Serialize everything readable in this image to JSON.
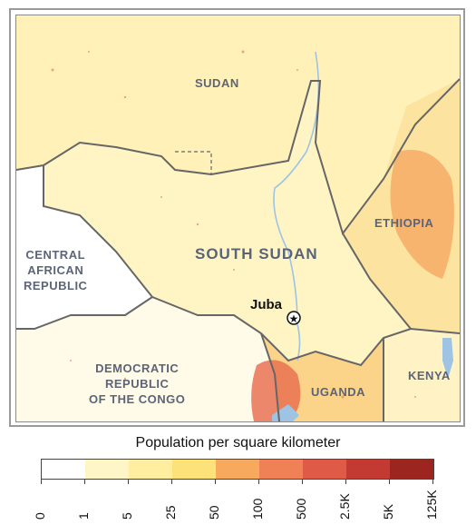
{
  "map": {
    "countries": {
      "sudan": "SUDAN",
      "south_sudan": "SOUTH SUDAN",
      "ethiopia": "ETHIOPIA",
      "car": [
        "CENTRAL",
        "AFRICAN",
        "REPUBLIC"
      ],
      "drc": [
        "DEMOCRATIC",
        "REPUBLIC",
        "OF THE CONGO"
      ],
      "uganda": "UGANDA",
      "kenya": "KENYA"
    },
    "capital": "Juba"
  },
  "legend": {
    "title": "Population per square kilometer",
    "ticks": [
      "0",
      "1",
      "5",
      "25",
      "50",
      "100",
      "500",
      "2.5K",
      "5K",
      "125K"
    ],
    "colors": [
      "#ffffff",
      "#fff6c8",
      "#ffeea0",
      "#fde27a",
      "#f7a95e",
      "#f08056",
      "#e05a48",
      "#c33a33",
      "#9c2520"
    ]
  },
  "colors": {
    "border": "#666666",
    "river": "#9ec3e3",
    "label": "#5c6478"
  }
}
